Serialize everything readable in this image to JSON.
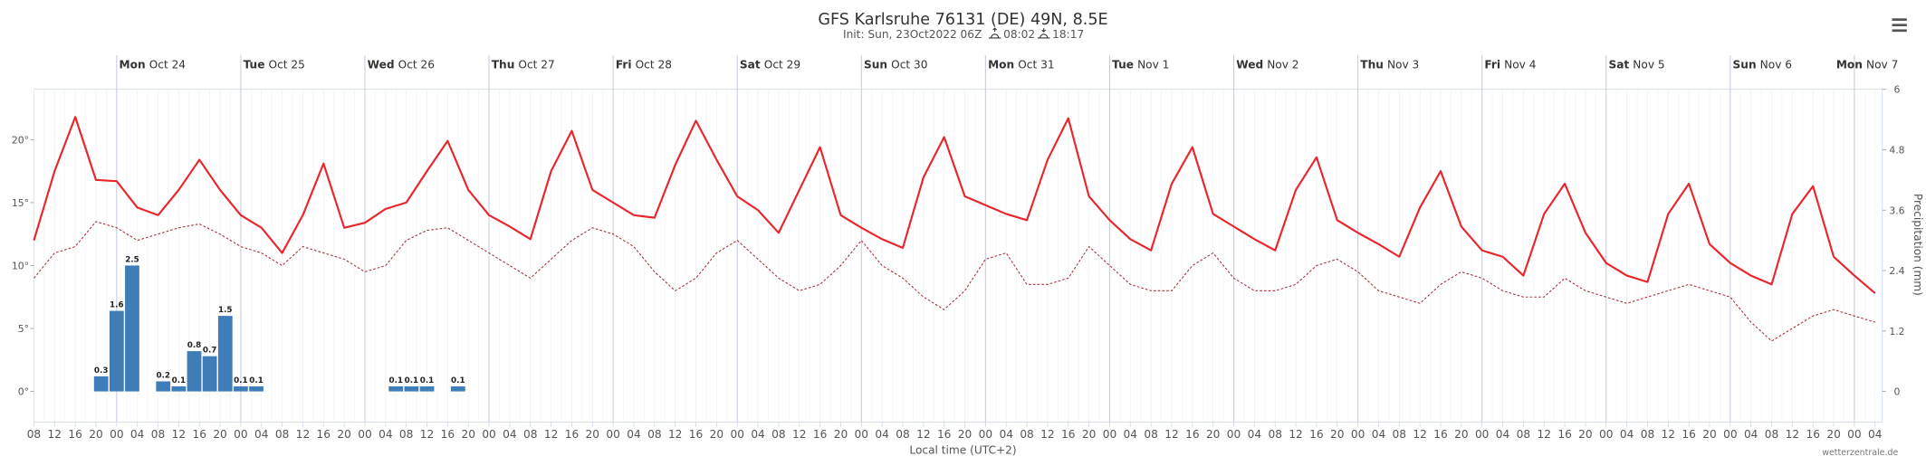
{
  "chart_data": {
    "type": "meteogram",
    "title": "GFS Karlsruhe 76131 (DE) 49N, 8.5E",
    "subtitle": "Init: Sun, 23Oct2022 06Z",
    "sunrise": "08:02",
    "sunset": "18:17",
    "days": [
      {
        "weekday": "Mon",
        "date": "Oct 24"
      },
      {
        "weekday": "Tue",
        "date": "Oct 25"
      },
      {
        "weekday": "Wed",
        "date": "Oct 26"
      },
      {
        "weekday": "Thu",
        "date": "Oct 27"
      },
      {
        "weekday": "Fri",
        "date": "Oct 28"
      },
      {
        "weekday": "Sat",
        "date": "Oct 29"
      },
      {
        "weekday": "Sun",
        "date": "Oct 30"
      },
      {
        "weekday": "Mon",
        "date": "Oct 31"
      },
      {
        "weekday": "Tue",
        "date": "Nov 1"
      },
      {
        "weekday": "Wed",
        "date": "Nov 2"
      },
      {
        "weekday": "Thu",
        "date": "Nov 3"
      },
      {
        "weekday": "Fri",
        "date": "Nov 4"
      },
      {
        "weekday": "Sat",
        "date": "Nov 5"
      },
      {
        "weekday": "Sun",
        "date": "Nov 6"
      },
      {
        "weekday": "Mon",
        "date": "Nov 7"
      }
    ],
    "categories": [
      "08",
      "12",
      "16",
      "20",
      "00",
      "04",
      "08",
      "12",
      "16",
      "20",
      "00",
      "04",
      "08",
      "12",
      "16",
      "20",
      "00",
      "04",
      "08",
      "12",
      "16",
      "20",
      "00",
      "04",
      "08",
      "12",
      "16",
      "20",
      "00",
      "04",
      "08",
      "12",
      "16",
      "20",
      "00",
      "04",
      "08",
      "12",
      "16",
      "20",
      "00",
      "04",
      "08",
      "12",
      "16",
      "20",
      "00",
      "04",
      "08",
      "12",
      "16",
      "20",
      "00",
      "04",
      "08",
      "12",
      "16",
      "20",
      "00",
      "04",
      "08",
      "12",
      "16",
      "20",
      "00",
      "04",
      "08",
      "12",
      "16",
      "20",
      "00",
      "04",
      "08",
      "12",
      "16",
      "20",
      "00",
      "04",
      "08",
      "12",
      "16",
      "20",
      "00",
      "04",
      "08",
      "12",
      "16",
      "20",
      "00",
      "04"
    ],
    "xlabel": "Local time (UTC+2)",
    "ylim": [
      0,
      24
    ],
    "yticks": [
      {
        "value": 0,
        "label": "0°"
      },
      {
        "value": 5,
        "label": "5°"
      },
      {
        "value": 10,
        "label": "10°"
      },
      {
        "value": 15,
        "label": "15°"
      },
      {
        "value": 20,
        "label": "20°"
      }
    ],
    "y2lim": [
      0,
      6
    ],
    "y2ticks": [
      0,
      1.2,
      2.4,
      3.6,
      4.8,
      6
    ],
    "y2label": "Precipitation (mm)",
    "series": [
      {
        "color": "#e8262b",
        "dashed": false,
        "values": [
          12,
          17.5,
          21.8,
          16.8,
          16.7,
          14.6,
          14,
          16,
          18.4,
          16,
          14,
          13,
          11,
          14,
          18.1,
          13,
          13.4,
          14.5,
          15,
          17.5,
          19.9,
          16,
          14,
          13.1,
          12.1,
          17.5,
          20.7,
          16,
          15,
          14,
          13.8,
          18,
          21.5,
          18.4,
          15.5,
          14.4,
          12.6,
          16,
          19.4,
          14,
          13,
          12.1,
          11.4,
          17,
          20.2,
          15.5,
          14.8,
          14.1,
          13.6,
          18.4,
          21.7,
          15.5,
          13.6,
          12.1,
          11.2,
          16.5,
          19.4,
          14.1,
          13.1,
          12.1,
          11.2,
          16,
          18.6,
          13.6,
          12.6,
          11.7,
          10.7,
          14.6,
          17.5,
          13.1,
          11.2,
          10.7,
          9.2,
          14.1,
          16.5,
          12.6,
          10.2,
          9.2,
          8.7,
          14.1,
          16.5,
          11.7,
          10.2,
          9.2,
          8.5,
          14.1,
          16.3,
          10.7,
          9.2,
          7.8
        ]
      },
      {
        "color": "#a8333a",
        "dashed": true,
        "values": [
          9,
          11,
          11.5,
          13.5,
          13,
          12,
          12.5,
          13,
          13.3,
          12.5,
          11.5,
          11,
          10,
          11.5,
          11,
          10.5,
          9.5,
          10,
          12,
          12.8,
          13,
          12,
          11,
          10,
          9,
          10.5,
          12,
          13,
          12.5,
          11.5,
          9.5,
          8,
          9,
          11,
          12,
          10.5,
          9,
          8,
          8.5,
          10,
          12,
          10,
          9,
          7.5,
          6.5,
          8,
          10.5,
          11,
          8.5,
          8.5,
          9,
          11.5,
          10,
          8.5,
          8,
          8,
          10,
          11,
          9,
          8,
          8,
          8.5,
          10,
          10.5,
          9.5,
          8,
          7.5,
          7,
          8.5,
          9.5,
          9,
          8,
          7.5,
          7.5,
          9,
          8,
          7.5,
          7,
          7.5,
          8,
          8.5,
          8,
          7.5,
          5.5,
          4,
          5,
          6,
          6.5,
          6,
          5.5
        ]
      }
    ],
    "precipitation": {
      "color": "#3f7db8",
      "axis": "y2",
      "x": [
        "Oct 23 21:00",
        "Oct 24 00:00",
        "Oct 24 03:00",
        "Oct 24 09:00",
        "Oct 24 12:00",
        "Oct 24 15:00",
        "Oct 24 18:00",
        "Oct 24 21:00",
        "Oct 25 00:00",
        "Oct 25 03:00",
        "Oct 26 06:00",
        "Oct 26 09:00",
        "Oct 26 12:00",
        "Oct 26 18:00"
      ],
      "values": [
        0.3,
        1.6,
        2.5,
        0.2,
        0.1,
        0.8,
        0.7,
        1.5,
        0.1,
        0.1,
        0.1,
        0.1,
        0.1,
        0.1
      ]
    },
    "credit": "wetterzentrale.de"
  }
}
